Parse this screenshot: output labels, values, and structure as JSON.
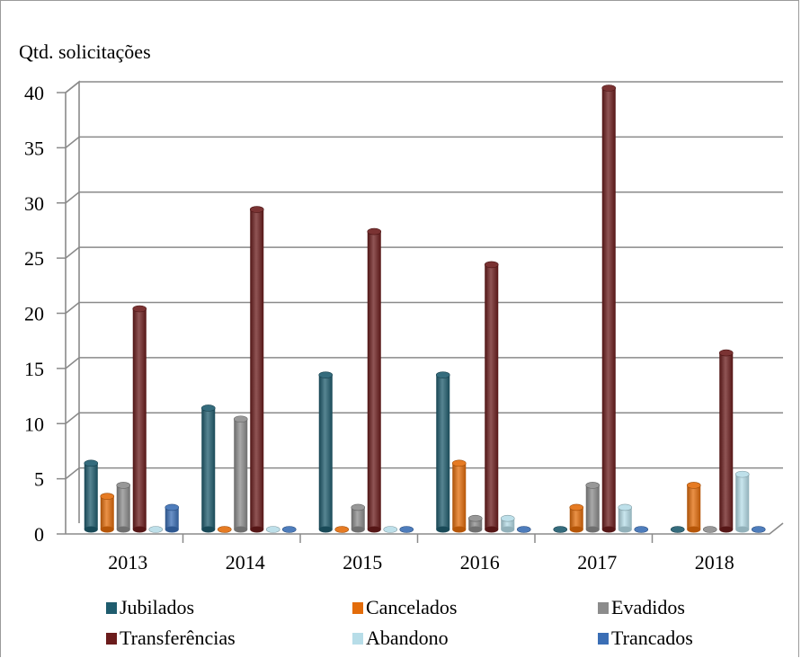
{
  "chart_data": {
    "type": "bar",
    "ylabel": "Qtd. solicitações",
    "categories": [
      "2013",
      "2014",
      "2015",
      "2016",
      "2017",
      "2018"
    ],
    "ylim": [
      0,
      40
    ],
    "yticks": [
      0,
      5,
      10,
      15,
      20,
      25,
      30,
      35,
      40
    ],
    "grid": true,
    "legend_position": "bottom",
    "series": [
      {
        "name": "Jubilados",
        "color": "#1f5c6e",
        "values": [
          6,
          11,
          14,
          14,
          0,
          0
        ]
      },
      {
        "name": "Cancelados",
        "color": "#e36c0a",
        "values": [
          3,
          0,
          0,
          6,
          2,
          4
        ]
      },
      {
        "name": "Evadidos",
        "color": "#8c8c8c",
        "values": [
          4,
          10,
          2,
          1,
          4,
          0
        ]
      },
      {
        "name": "Transferências",
        "color": "#6b1c1c",
        "values": [
          20,
          29,
          27,
          24,
          40,
          16
        ]
      },
      {
        "name": "Abandono",
        "color": "#b7dde8",
        "values": [
          0,
          0,
          0,
          1,
          2,
          5
        ]
      },
      {
        "name": "Trancados",
        "color": "#3a6eb5",
        "values": [
          2,
          0,
          0,
          0,
          0,
          0
        ]
      }
    ]
  }
}
